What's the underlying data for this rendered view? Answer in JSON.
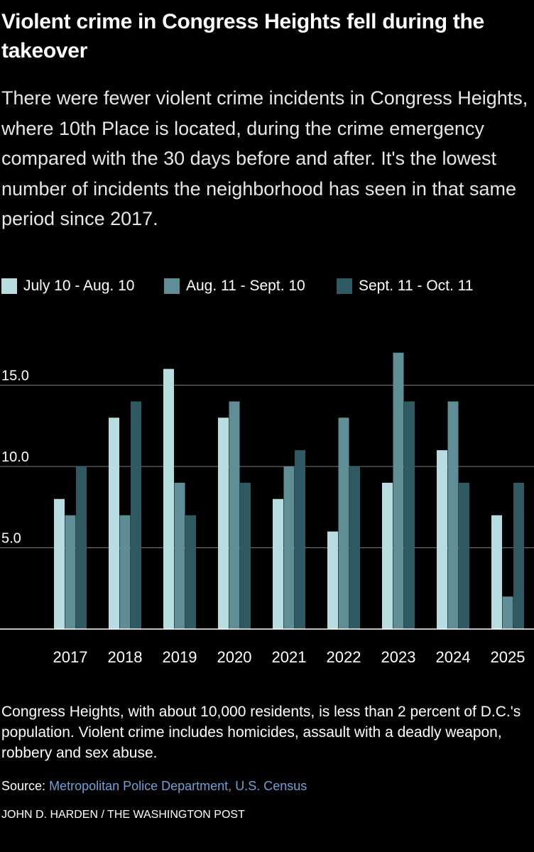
{
  "title": "Violent crime in Congress Heights fell during the takeover",
  "subtitle": "There were fewer violent crime incidents in Congress Heights, where 10th Place is located, during the crime emergency compared with the 30 days before and after. It's the lowest number of incidents the neighborhood has seen in that same period since 2017.",
  "note": "Congress Heights, with about 10,000 residents, is less than 2 percent of D.C.'s population. Violent crime includes homicides, assault with a deadly weapon, robbery and sex abuse.",
  "source_label": "Source:",
  "source_text": "Metropolitan Police Department, U.S. Census",
  "credit": "JOHN D. HARDEN / THE WASHINGTON POST",
  "colors": {
    "background": "#000000",
    "series1": "#b7dde0",
    "series2": "#5f8e96",
    "series3": "#2f5a61",
    "link": "#6fa0d8"
  },
  "chart_data": {
    "type": "bar",
    "title": "Violent crime in Congress Heights fell during the takeover",
    "xlabel": "",
    "ylabel": "",
    "ylim": [
      0,
      17.5
    ],
    "yticks": [
      5.0,
      10.0,
      15.0
    ],
    "ytick_labels": [
      "5.0",
      "10.0",
      "15.0"
    ],
    "grid": true,
    "legend_position": "top-left",
    "categories": [
      "2017",
      "2018",
      "2019",
      "2020",
      "2021",
      "2022",
      "2023",
      "2024",
      "2025"
    ],
    "series": [
      {
        "name": "July 10 - Aug. 10",
        "values": [
          8,
          13,
          16,
          13,
          8,
          6,
          9,
          11,
          7
        ]
      },
      {
        "name": "Aug. 11 - Sept. 10",
        "values": [
          7,
          7,
          9,
          14,
          10,
          13,
          17,
          14,
          2
        ]
      },
      {
        "name": "Sept. 11 - Oct. 11",
        "values": [
          10,
          14,
          7,
          9,
          11,
          10,
          14,
          9,
          9
        ]
      }
    ]
  }
}
